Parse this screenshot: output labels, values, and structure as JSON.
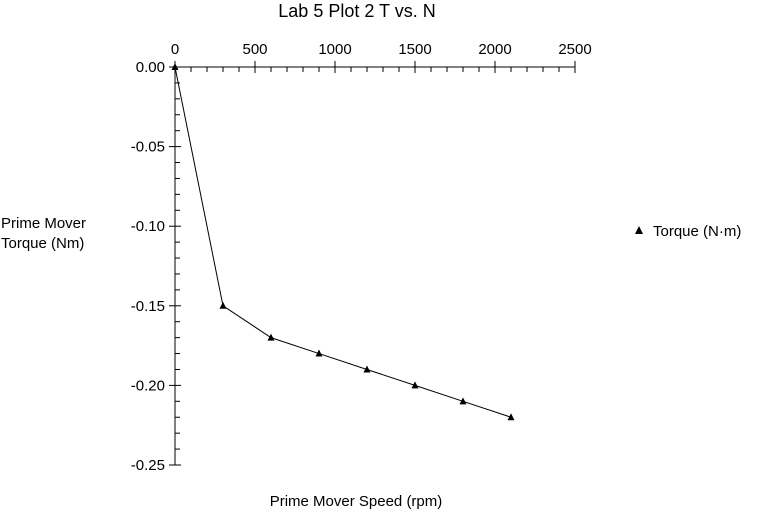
{
  "chart_data": {
    "type": "line",
    "title": "Lab 5 Plot 2  T vs. N",
    "xlabel": "Prime Mover Speed (rpm)",
    "ylabel_lines": [
      "Prime Mover",
      "Torque (Nm)"
    ],
    "xlim": [
      0,
      2500
    ],
    "ylim": [
      -0.25,
      0.0
    ],
    "x_ticks": [
      0,
      500,
      1000,
      1500,
      2000,
      2500
    ],
    "x_tick_labels": [
      "0",
      "500",
      "1000",
      "1500",
      "2000",
      "2500"
    ],
    "y_ticks": [
      0.0,
      -0.05,
      -0.1,
      -0.15,
      -0.2,
      -0.25
    ],
    "y_tick_labels": [
      "0.00",
      "-0.05",
      "-0.10",
      "-0.15",
      "-0.20",
      "-0.25"
    ],
    "x_axis_position": "top",
    "marker": "triangle",
    "grid": false,
    "legend_position": "right",
    "series": [
      {
        "name": "Torque (N·m)",
        "color": "#000000",
        "x": [
          0,
          300,
          600,
          900,
          1200,
          1500,
          1800,
          2100
        ],
        "y": [
          0.0,
          -0.15,
          -0.17,
          -0.18,
          -0.19,
          -0.2,
          -0.21,
          -0.22
        ]
      }
    ]
  }
}
